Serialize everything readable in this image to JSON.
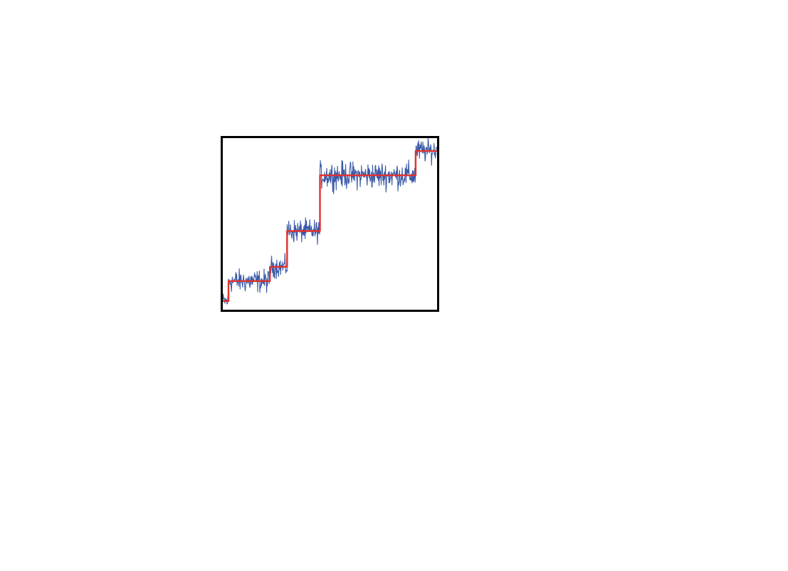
{
  "chart_data": {
    "type": "line",
    "title": "",
    "xlabel": "",
    "ylabel": "",
    "xlim": [
      0,
      300
    ],
    "ylim": [
      0,
      240
    ],
    "grid": false,
    "legend": "none",
    "series": [
      {
        "kind": "noisy-trace",
        "color": "#3b5ba8",
        "segments": [
          {
            "x_start": 0,
            "x_end": 8,
            "level": 12,
            "noise": 9
          },
          {
            "x_start": 8,
            "x_end": 66,
            "level": 40,
            "noise": 12
          },
          {
            "x_start": 66,
            "x_end": 90,
            "level": 60,
            "noise": 11
          },
          {
            "x_start": 90,
            "x_end": 136,
            "level": 110,
            "noise": 12
          },
          {
            "x_start": 136,
            "x_end": 270,
            "level": 188,
            "noise": 14
          },
          {
            "x_start": 270,
            "x_end": 300,
            "level": 222,
            "noise": 12
          }
        ]
      },
      {
        "kind": "step-fit",
        "color": "#e0312c",
        "x": [
          0,
          8,
          66,
          90,
          136,
          270,
          300
        ],
        "y": [
          12,
          40,
          60,
          110,
          188,
          222,
          222
        ]
      }
    ]
  }
}
